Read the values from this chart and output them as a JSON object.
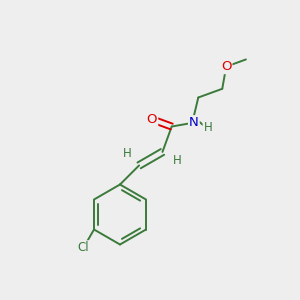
{
  "background_color": "#eeeeee",
  "bond_color": "#3a7a3a",
  "atom_colors": {
    "O": "#dd0000",
    "N": "#0000cc",
    "Cl": "#3a7a3a",
    "H": "#3a7a3a"
  },
  "figsize": [
    3.0,
    3.0
  ],
  "dpi": 100,
  "xlim": [
    0,
    10
  ],
  "ylim": [
    0,
    10
  ]
}
